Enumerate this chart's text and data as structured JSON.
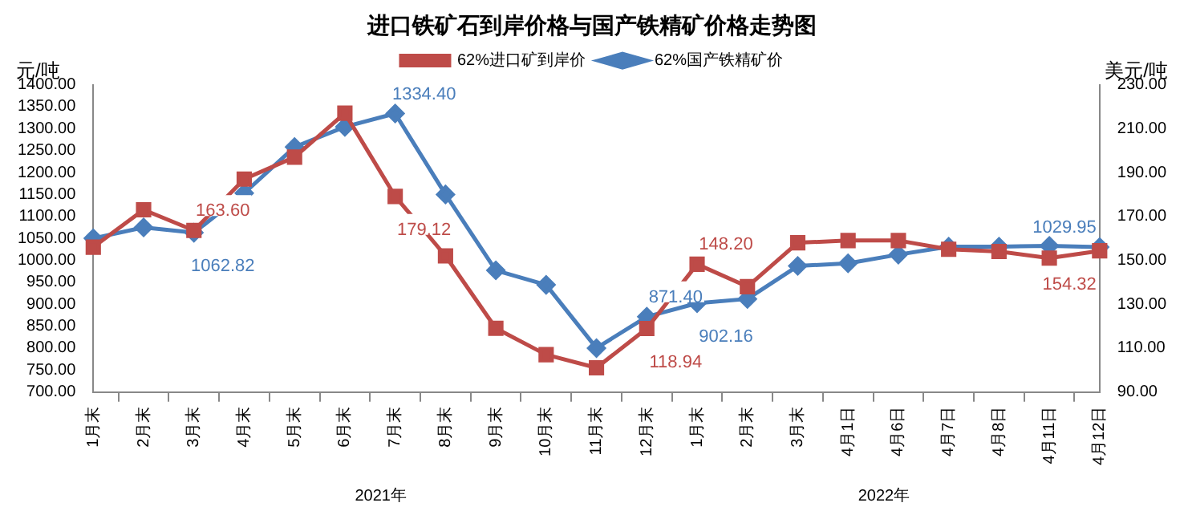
{
  "chart_data": {
    "type": "line",
    "title": "进口铁矿石到岸价格与国产铁精矿价格走势图",
    "ylabel": "元/吨",
    "y2label": "美元/吨",
    "categories": [
      "1月末",
      "2月末",
      "3月末",
      "4月末",
      "5月末",
      "6月末",
      "7月末",
      "8月末",
      "9月末",
      "10月末",
      "11月末",
      "12月末",
      "1月末",
      "2月末",
      "3月末",
      "4月1日",
      "4月6日",
      "4月7日",
      "4月8日",
      "4月11日",
      "4月12日"
    ],
    "annotations": [
      "2021年",
      "2022年"
    ],
    "series": [
      {
        "name": "62%国产铁精矿价",
        "color": "#4a7ebb",
        "marker": "diamond",
        "values": [
          1050,
          1075,
          1062.82,
          1153,
          1258,
          1304,
          1334.4,
          1150,
          977,
          944,
          800,
          871.4,
          902.16,
          912,
          987,
          993,
          1013,
          1031,
          1031,
          1033,
          1029.95
        ],
        "value_labels": [
          null,
          null,
          "1062.82",
          null,
          null,
          null,
          "1334.40",
          null,
          null,
          null,
          null,
          "871.40",
          "902.16",
          null,
          null,
          null,
          null,
          null,
          null,
          null,
          "1029.95"
        ]
      },
      {
        "name": "62%进口矿到岸价",
        "color": "#be4b48",
        "marker": "square",
        "axis": "y2",
        "values": [
          156,
          173,
          163.6,
          187,
          197,
          217,
          179.12,
          152,
          119,
          107,
          101,
          118.94,
          148.2,
          138,
          158,
          159,
          159,
          155,
          154,
          151,
          154.32
        ],
        "value_labels": [
          null,
          null,
          "163.60",
          null,
          null,
          null,
          "179.12",
          null,
          null,
          null,
          null,
          "118.94",
          "148.20",
          null,
          null,
          null,
          null,
          null,
          null,
          null,
          "154.32"
        ]
      }
    ],
    "ylim": [
      700,
      1400
    ],
    "yticks": [
      {
        "value": 700,
        "label": "700.00"
      },
      {
        "value": 750,
        "label": "750.00"
      },
      {
        "value": 800,
        "label": "800.00"
      },
      {
        "value": 850,
        "label": "850.00"
      },
      {
        "value": 900,
        "label": "900.00"
      },
      {
        "value": 950,
        "label": "950.00"
      },
      {
        "value": 1000,
        "label": "1000.00"
      },
      {
        "value": 1050,
        "label": "1050.00"
      },
      {
        "value": 1100,
        "label": "1100.00"
      },
      {
        "value": 1150,
        "label": "1150.00"
      },
      {
        "value": 1200,
        "label": "1200.00"
      },
      {
        "value": 1250,
        "label": "1250.00"
      },
      {
        "value": 1300,
        "label": "1300.00"
      },
      {
        "value": 1350,
        "label": "1350.00"
      },
      {
        "value": 1400,
        "label": "1400.00"
      }
    ],
    "y2lim": [
      90,
      230
    ],
    "y2ticks": [
      {
        "value": 90,
        "label": "90.00"
      },
      {
        "value": 110,
        "label": "110.00"
      },
      {
        "value": 130,
        "label": "130.00"
      },
      {
        "value": 150,
        "label": "150.00"
      },
      {
        "value": 170,
        "label": "170.00"
      },
      {
        "value": 190,
        "label": "190.00"
      },
      {
        "value": 210,
        "label": "210.00"
      },
      {
        "value": 230,
        "label": "230.00"
      }
    ],
    "grid": false,
    "legend": "top",
    "line_style": "solid"
  }
}
